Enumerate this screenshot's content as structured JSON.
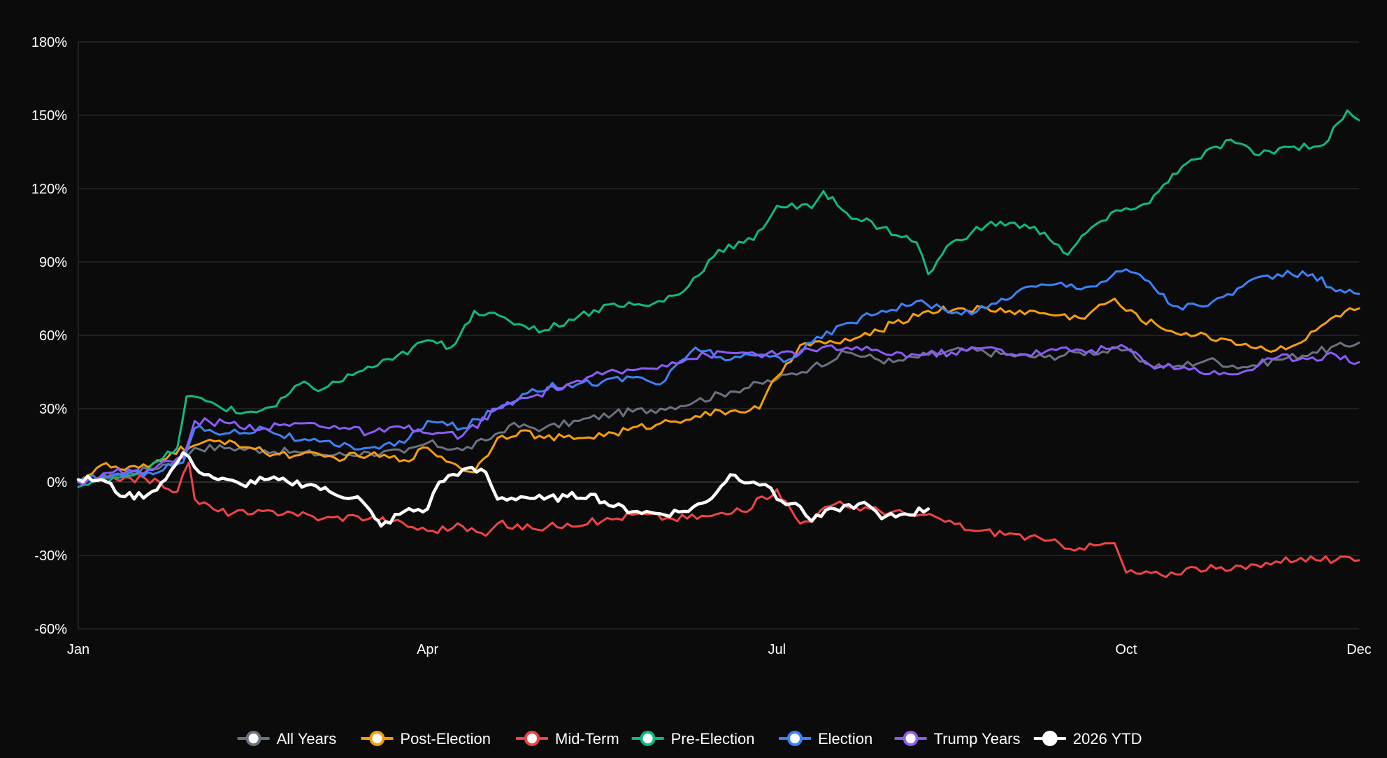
{
  "chart_data": {
    "type": "line",
    "title": "",
    "xlabel": "",
    "ylabel": "",
    "x_ticks": [
      "Jan",
      "Apr",
      "Jul",
      "Oct",
      "Dec"
    ],
    "x_tick_positions_month": [
      0,
      3,
      6,
      9,
      11
    ],
    "xlim": [
      0,
      11
    ],
    "y_ticks": [
      "180%",
      "150%",
      "120%",
      "90%",
      "60%",
      "30%",
      "0%",
      "-30%",
      "-60%"
    ],
    "y_tick_values": [
      180,
      150,
      120,
      90,
      60,
      30,
      0,
      -30,
      -60
    ],
    "ylim": [
      -60,
      180
    ],
    "grid": true,
    "legend_position": "bottom",
    "series": [
      {
        "name": "All Years",
        "color": "#6b7280",
        "points": [
          [
            0,
            0
          ],
          [
            0.3,
            3
          ],
          [
            0.6,
            5
          ],
          [
            0.9,
            10
          ],
          [
            1.0,
            14
          ],
          [
            1.3,
            14
          ],
          [
            1.6,
            13
          ],
          [
            1.9,
            12
          ],
          [
            2.2,
            11
          ],
          [
            2.5,
            12
          ],
          [
            2.8,
            12
          ],
          [
            3.0,
            16
          ],
          [
            3.3,
            13
          ],
          [
            3.5,
            17
          ],
          [
            3.7,
            23
          ],
          [
            4.0,
            22
          ],
          [
            4.3,
            25
          ],
          [
            4.6,
            28
          ],
          [
            5.0,
            30
          ],
          [
            5.3,
            33
          ],
          [
            5.6,
            37
          ],
          [
            6.0,
            42
          ],
          [
            6.3,
            47
          ],
          [
            6.6,
            53
          ],
          [
            7.0,
            49
          ],
          [
            7.3,
            52
          ],
          [
            7.6,
            54
          ],
          [
            8.0,
            52
          ],
          [
            8.3,
            51
          ],
          [
            8.6,
            53
          ],
          [
            9.0,
            54
          ],
          [
            9.2,
            48
          ],
          [
            9.4,
            47
          ],
          [
            9.7,
            50
          ],
          [
            10.0,
            47
          ],
          [
            10.3,
            50
          ],
          [
            10.6,
            53
          ],
          [
            11.0,
            57
          ]
        ]
      },
      {
        "name": "Post-Election",
        "color": "#f59e0b",
        "points": [
          [
            0,
            0
          ],
          [
            0.2,
            7
          ],
          [
            0.4,
            5
          ],
          [
            0.6,
            6
          ],
          [
            0.8,
            12
          ],
          [
            1.0,
            15
          ],
          [
            1.3,
            17
          ],
          [
            1.6,
            12
          ],
          [
            1.9,
            11
          ],
          [
            2.2,
            10
          ],
          [
            2.5,
            11
          ],
          [
            2.8,
            9
          ],
          [
            3.0,
            14
          ],
          [
            3.2,
            8
          ],
          [
            3.4,
            4
          ],
          [
            3.6,
            18
          ],
          [
            3.8,
            21
          ],
          [
            4.0,
            18
          ],
          [
            4.3,
            18
          ],
          [
            4.6,
            20
          ],
          [
            5.0,
            24
          ],
          [
            5.3,
            27
          ],
          [
            5.6,
            29
          ],
          [
            5.85,
            30
          ],
          [
            6.0,
            43
          ],
          [
            6.2,
            56
          ],
          [
            6.5,
            57
          ],
          [
            6.8,
            60
          ],
          [
            7.0,
            65
          ],
          [
            7.3,
            70
          ],
          [
            7.6,
            71
          ],
          [
            8.0,
            70
          ],
          [
            8.3,
            69
          ],
          [
            8.6,
            67
          ],
          [
            8.9,
            75
          ],
          [
            9.0,
            70
          ],
          [
            9.3,
            63
          ],
          [
            9.6,
            60
          ],
          [
            9.9,
            58
          ],
          [
            10.2,
            54
          ],
          [
            10.5,
            57
          ],
          [
            10.8,
            68
          ],
          [
            11.0,
            71
          ]
        ]
      },
      {
        "name": "Mid-Term",
        "color": "#ef4444",
        "points": [
          [
            0,
            0
          ],
          [
            0.4,
            2
          ],
          [
            0.7,
            0
          ],
          [
            0.85,
            -4
          ],
          [
            0.95,
            8
          ],
          [
            1.0,
            -7
          ],
          [
            1.2,
            -12
          ],
          [
            1.5,
            -13
          ],
          [
            1.8,
            -12
          ],
          [
            2.1,
            -15
          ],
          [
            2.4,
            -14
          ],
          [
            2.7,
            -16
          ],
          [
            3.0,
            -20
          ],
          [
            3.3,
            -18
          ],
          [
            3.5,
            -22
          ],
          [
            3.6,
            -17
          ],
          [
            3.9,
            -19
          ],
          [
            4.2,
            -17
          ],
          [
            4.5,
            -16
          ],
          [
            4.8,
            -13
          ],
          [
            5.1,
            -15
          ],
          [
            5.4,
            -14
          ],
          [
            5.7,
            -12
          ],
          [
            6.0,
            -3
          ],
          [
            6.2,
            -17
          ],
          [
            6.5,
            -9
          ],
          [
            6.8,
            -11
          ],
          [
            7.1,
            -13
          ],
          [
            7.4,
            -15
          ],
          [
            7.7,
            -20
          ],
          [
            8.0,
            -21
          ],
          [
            8.3,
            -24
          ],
          [
            8.6,
            -27
          ],
          [
            8.9,
            -25
          ],
          [
            9.0,
            -37
          ],
          [
            9.3,
            -38
          ],
          [
            9.6,
            -35
          ],
          [
            9.9,
            -36
          ],
          [
            10.2,
            -33
          ],
          [
            10.5,
            -31
          ],
          [
            10.8,
            -32
          ],
          [
            11.0,
            -32
          ]
        ]
      },
      {
        "name": "Pre-Election",
        "color": "#10b981",
        "points": [
          [
            0,
            -2
          ],
          [
            0.3,
            2
          ],
          [
            0.6,
            5
          ],
          [
            0.85,
            14
          ],
          [
            0.93,
            35
          ],
          [
            1.1,
            33
          ],
          [
            1.4,
            28
          ],
          [
            1.7,
            31
          ],
          [
            1.9,
            40
          ],
          [
            2.1,
            38
          ],
          [
            2.4,
            45
          ],
          [
            2.7,
            50
          ],
          [
            3.0,
            58
          ],
          [
            3.2,
            55
          ],
          [
            3.4,
            70
          ],
          [
            3.7,
            66
          ],
          [
            4.0,
            62
          ],
          [
            4.3,
            68
          ],
          [
            4.6,
            73
          ],
          [
            4.9,
            72
          ],
          [
            5.2,
            78
          ],
          [
            5.5,
            95
          ],
          [
            5.8,
            99
          ],
          [
            6.0,
            113
          ],
          [
            6.3,
            112
          ],
          [
            6.4,
            119
          ],
          [
            6.6,
            110
          ],
          [
            6.9,
            104
          ],
          [
            7.2,
            98
          ],
          [
            7.3,
            85
          ],
          [
            7.5,
            98
          ],
          [
            7.8,
            105
          ],
          [
            8.0,
            106
          ],
          [
            8.3,
            102
          ],
          [
            8.5,
            93
          ],
          [
            8.7,
            104
          ],
          [
            9.0,
            112
          ],
          [
            9.2,
            114
          ],
          [
            9.4,
            126
          ],
          [
            9.6,
            132
          ],
          [
            9.9,
            140
          ],
          [
            10.1,
            134
          ],
          [
            10.4,
            137
          ],
          [
            10.7,
            138
          ],
          [
            10.9,
            152
          ],
          [
            11.0,
            148
          ]
        ]
      },
      {
        "name": "Election",
        "color": "#3b82f6",
        "points": [
          [
            0,
            0
          ],
          [
            0.3,
            3
          ],
          [
            0.6,
            4
          ],
          [
            0.9,
            8
          ],
          [
            1.0,
            22
          ],
          [
            1.3,
            20
          ],
          [
            1.6,
            22
          ],
          [
            1.9,
            17
          ],
          [
            2.2,
            15
          ],
          [
            2.5,
            14
          ],
          [
            2.8,
            16
          ],
          [
            3.0,
            25
          ],
          [
            3.3,
            22
          ],
          [
            3.6,
            30
          ],
          [
            3.9,
            38
          ],
          [
            4.2,
            40
          ],
          [
            4.5,
            41
          ],
          [
            4.8,
            43
          ],
          [
            5.0,
            40
          ],
          [
            5.3,
            55
          ],
          [
            5.6,
            50
          ],
          [
            5.9,
            52
          ],
          [
            6.1,
            50
          ],
          [
            6.3,
            57
          ],
          [
            6.6,
            65
          ],
          [
            6.9,
            70
          ],
          [
            7.2,
            74
          ],
          [
            7.5,
            69
          ],
          [
            7.8,
            71
          ],
          [
            8.1,
            79
          ],
          [
            8.4,
            81
          ],
          [
            8.7,
            80
          ],
          [
            9.0,
            87
          ],
          [
            9.2,
            82
          ],
          [
            9.4,
            72
          ],
          [
            9.7,
            72
          ],
          [
            10.0,
            80
          ],
          [
            10.3,
            85
          ],
          [
            10.6,
            85
          ],
          [
            10.8,
            78
          ],
          [
            11.0,
            77
          ]
        ]
      },
      {
        "name": "Trump Years",
        "color": "#8b5cf6",
        "points": [
          [
            0,
            0
          ],
          [
            0.3,
            4
          ],
          [
            0.6,
            5
          ],
          [
            0.9,
            10
          ],
          [
            1.0,
            25
          ],
          [
            1.3,
            24
          ],
          [
            1.6,
            22
          ],
          [
            1.9,
            24
          ],
          [
            2.2,
            23
          ],
          [
            2.5,
            20
          ],
          [
            2.8,
            22
          ],
          [
            3.0,
            20
          ],
          [
            3.3,
            19
          ],
          [
            3.6,
            30
          ],
          [
            3.9,
            35
          ],
          [
            4.2,
            40
          ],
          [
            4.5,
            44
          ],
          [
            4.8,
            46
          ],
          [
            5.1,
            49
          ],
          [
            5.4,
            52
          ],
          [
            5.7,
            53
          ],
          [
            6.0,
            52
          ],
          [
            6.3,
            54
          ],
          [
            6.6,
            55
          ],
          [
            6.9,
            53
          ],
          [
            7.2,
            52
          ],
          [
            7.5,
            53
          ],
          [
            7.8,
            55
          ],
          [
            8.1,
            52
          ],
          [
            8.4,
            54
          ],
          [
            8.7,
            54
          ],
          [
            9.0,
            55
          ],
          [
            9.2,
            48
          ],
          [
            9.5,
            47
          ],
          [
            9.8,
            44
          ],
          [
            10.0,
            45
          ],
          [
            10.3,
            51
          ],
          [
            10.6,
            51
          ],
          [
            10.8,
            52
          ],
          [
            11.0,
            49
          ]
        ]
      },
      {
        "name": "2026 YTD",
        "color": "#ffffff",
        "points": [
          [
            0,
            1
          ],
          [
            0.2,
            1
          ],
          [
            0.4,
            -6
          ],
          [
            0.6,
            -5
          ],
          [
            0.75,
            1
          ],
          [
            0.85,
            8
          ],
          [
            0.9,
            12
          ],
          [
            1.0,
            6
          ],
          [
            1.2,
            1
          ],
          [
            1.4,
            -1
          ],
          [
            1.6,
            1
          ],
          [
            1.8,
            0
          ],
          [
            2.0,
            -1
          ],
          [
            2.2,
            -5
          ],
          [
            2.4,
            -6
          ],
          [
            2.55,
            -15
          ],
          [
            2.6,
            -18
          ],
          [
            2.8,
            -12
          ],
          [
            3.0,
            -11
          ],
          [
            3.1,
            0
          ],
          [
            3.3,
            5
          ],
          [
            3.5,
            4
          ],
          [
            3.6,
            -7
          ],
          [
            3.8,
            -6
          ],
          [
            4.0,
            -7
          ],
          [
            4.2,
            -6
          ],
          [
            4.4,
            -5
          ],
          [
            4.6,
            -10
          ],
          [
            4.8,
            -12
          ],
          [
            5.0,
            -13
          ],
          [
            5.2,
            -12
          ],
          [
            5.4,
            -8
          ],
          [
            5.6,
            3
          ],
          [
            5.8,
            0
          ],
          [
            5.9,
            -1
          ],
          [
            6.0,
            -7
          ],
          [
            6.2,
            -10
          ],
          [
            6.3,
            -16
          ],
          [
            6.5,
            -11
          ],
          [
            6.7,
            -9
          ],
          [
            6.8,
            -10
          ],
          [
            6.9,
            -15
          ],
          [
            7.1,
            -13
          ],
          [
            7.3,
            -11
          ]
        ]
      }
    ]
  }
}
